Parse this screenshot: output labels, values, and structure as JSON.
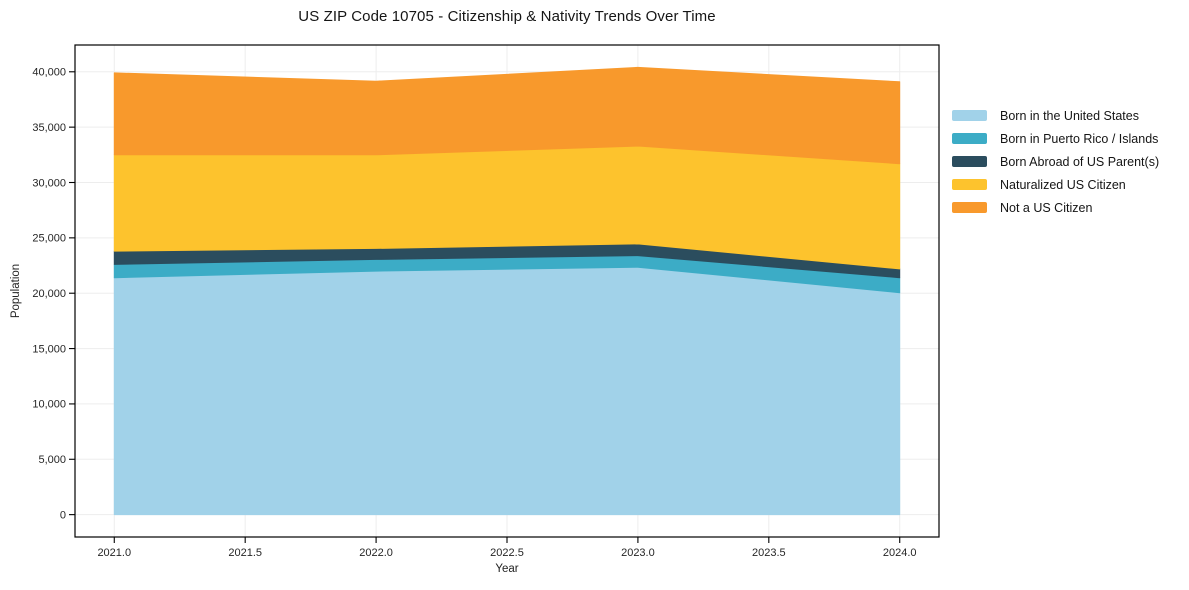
{
  "title": "US ZIP Code 10705 - Citizenship & Nativity Trends Over Time",
  "chart_data": {
    "type": "area",
    "stacked": true,
    "title": "US ZIP Code 10705 - Citizenship & Nativity Trends Over Time",
    "xlabel": "Year",
    "ylabel": "Population",
    "x": [
      2021,
      2022,
      2023,
      2024
    ],
    "series": [
      {
        "name": "Born in the United States",
        "color": "#A1D2E9",
        "values": [
          21400,
          22000,
          22350,
          20050
        ]
      },
      {
        "name": "Born in Puerto Rico / Islands",
        "color": "#3CACC6",
        "values": [
          1200,
          1050,
          1050,
          1350
        ]
      },
      {
        "name": "Born Abroad of US Parent(s)",
        "color": "#2B4D5E",
        "values": [
          1200,
          1000,
          1050,
          800
        ]
      },
      {
        "name": "Naturalized US Citizen",
        "color": "#FDC32D",
        "values": [
          8700,
          8450,
          8850,
          9500
        ]
      },
      {
        "name": "Not a US Citizen",
        "color": "#F8992C",
        "values": [
          7400,
          6650,
          7100,
          7400
        ]
      }
    ],
    "stacked_totals": [
      39900,
      39150,
      40400,
      39100
    ],
    "x_tick_labels": [
      "2021.0",
      "2021.5",
      "2022.0",
      "2022.5",
      "2023.0",
      "2023.5",
      "2024.0"
    ],
    "x_tick_values": [
      2021,
      2021.5,
      2022,
      2022.5,
      2023,
      2023.5,
      2024
    ],
    "y_tick_labels": [
      "0",
      "5,000",
      "10,000",
      "15,000",
      "20,000",
      "25,000",
      "30,000",
      "35,000",
      "40,000"
    ],
    "y_tick_values": [
      0,
      5000,
      10000,
      15000,
      20000,
      25000,
      30000,
      35000,
      40000
    ],
    "xlim": [
      2020.85,
      2024.15
    ],
    "ylim": [
      -2020,
      42420
    ],
    "grid": true,
    "legend_position": "right",
    "colors": {
      "grid": "#EDEDED",
      "spine": "#000000",
      "tick_label": "#262626",
      "background": "#FFFFFF"
    }
  }
}
